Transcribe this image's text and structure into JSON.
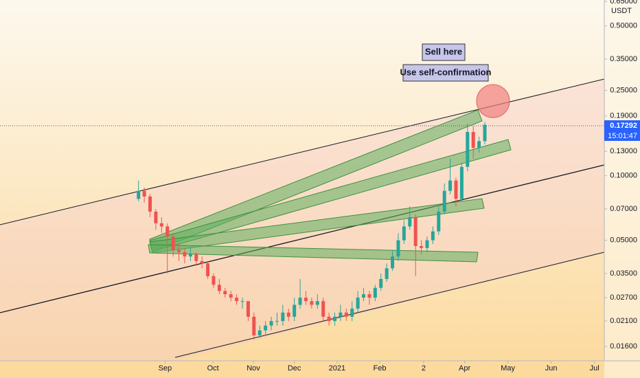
{
  "chart_data": {
    "type": "candlestick",
    "log_scale": true,
    "up_color": "#26a69a",
    "down_color": "#ef5350",
    "currency": "USDT",
    "countdown": "15:01:47",
    "annotations": [
      "Sell here",
      "Use self-confirmation"
    ],
    "candles": [
      [
        0.078,
        0.095,
        0.076,
        0.085
      ],
      [
        0.085,
        0.088,
        0.075,
        0.08
      ],
      [
        0.08,
        0.082,
        0.064,
        0.068
      ],
      [
        0.068,
        0.07,
        0.056,
        0.06
      ],
      [
        0.06,
        0.064,
        0.054,
        0.058
      ],
      [
        0.058,
        0.06,
        0.035,
        0.052
      ],
      [
        0.052,
        0.054,
        0.042,
        0.045
      ],
      [
        0.045,
        0.048,
        0.04,
        0.044
      ],
      [
        0.044,
        0.046,
        0.039,
        0.042
      ],
      [
        0.042,
        0.046,
        0.04,
        0.043
      ],
      [
        0.043,
        0.044,
        0.038,
        0.04
      ],
      [
        0.04,
        0.042,
        0.037,
        0.039
      ],
      [
        0.039,
        0.04,
        0.033,
        0.034
      ],
      [
        0.034,
        0.035,
        0.03,
        0.031
      ],
      [
        0.031,
        0.033,
        0.028,
        0.029
      ],
      [
        0.029,
        0.03,
        0.027,
        0.028
      ],
      [
        0.028,
        0.029,
        0.026,
        0.027
      ],
      [
        0.027,
        0.028,
        0.025,
        0.026
      ],
      [
        0.026,
        0.027,
        0.024,
        0.026
      ],
      [
        0.026,
        0.026,
        0.021,
        0.022
      ],
      [
        0.022,
        0.023,
        0.0172,
        0.018
      ],
      [
        0.018,
        0.02,
        0.0175,
        0.019
      ],
      [
        0.019,
        0.021,
        0.018,
        0.02
      ],
      [
        0.02,
        0.022,
        0.019,
        0.021
      ],
      [
        0.021,
        0.023,
        0.02,
        0.021
      ],
      [
        0.021,
        0.025,
        0.02,
        0.023
      ],
      [
        0.023,
        0.024,
        0.021,
        0.022
      ],
      [
        0.022,
        0.027,
        0.021,
        0.025
      ],
      [
        0.025,
        0.033,
        0.024,
        0.027
      ],
      [
        0.027,
        0.029,
        0.025,
        0.026
      ],
      [
        0.026,
        0.027,
        0.024,
        0.025
      ],
      [
        0.025,
        0.028,
        0.024,
        0.026
      ],
      [
        0.026,
        0.027,
        0.021,
        0.022
      ],
      [
        0.022,
        0.023,
        0.02,
        0.021
      ],
      [
        0.021,
        0.023,
        0.02,
        0.022
      ],
      [
        0.022,
        0.025,
        0.021,
        0.023
      ],
      [
        0.023,
        0.024,
        0.021,
        0.022
      ],
      [
        0.022,
        0.026,
        0.021,
        0.024
      ],
      [
        0.024,
        0.029,
        0.023,
        0.027
      ],
      [
        0.027,
        0.03,
        0.026,
        0.028
      ],
      [
        0.028,
        0.029,
        0.025,
        0.027
      ],
      [
        0.027,
        0.031,
        0.026,
        0.03
      ],
      [
        0.03,
        0.035,
        0.029,
        0.033
      ],
      [
        0.033,
        0.039,
        0.032,
        0.037
      ],
      [
        0.037,
        0.045,
        0.036,
        0.042
      ],
      [
        0.042,
        0.054,
        0.04,
        0.05
      ],
      [
        0.05,
        0.062,
        0.048,
        0.058
      ],
      [
        0.058,
        0.072,
        0.056,
        0.064
      ],
      [
        0.064,
        0.066,
        0.034,
        0.047
      ],
      [
        0.047,
        0.05,
        0.043,
        0.046
      ],
      [
        0.046,
        0.052,
        0.044,
        0.05
      ],
      [
        0.05,
        0.058,
        0.048,
        0.055
      ],
      [
        0.055,
        0.072,
        0.053,
        0.068
      ],
      [
        0.068,
        0.092,
        0.066,
        0.085
      ],
      [
        0.085,
        0.12,
        0.082,
        0.095
      ],
      [
        0.095,
        0.098,
        0.072,
        0.078
      ],
      [
        0.078,
        0.115,
        0.076,
        0.11
      ],
      [
        0.11,
        0.175,
        0.105,
        0.16
      ],
      [
        0.16,
        0.17,
        0.12,
        0.135
      ],
      [
        0.135,
        0.152,
        0.128,
        0.145
      ],
      [
        0.145,
        0.178,
        0.14,
        0.17292
      ]
    ],
    "xlim": [
      -24,
      80.7
    ],
    "xticks": [
      {
        "value": 4.6,
        "label": "Sep"
      },
      {
        "value": 12.9,
        "label": "Oct"
      },
      {
        "value": 19.9,
        "label": "Nov"
      },
      {
        "value": 27.0,
        "label": "Dec"
      },
      {
        "value": 34.4,
        "label": "2021"
      },
      {
        "value": 41.8,
        "label": "Feb"
      },
      {
        "value": 49.4,
        "label": "2"
      },
      {
        "value": 56.5,
        "label": "Apr"
      },
      {
        "value": 64.0,
        "label": "May"
      },
      {
        "value": 71.5,
        "label": "Jun"
      },
      {
        "value": 79.0,
        "label": "Jul"
      }
    ],
    "ylim": [
      0.0137,
      0.66
    ],
    "yticks": [
      {
        "value": 0.65,
        "label": "0.65000"
      },
      {
        "value": 0.5,
        "label": "0.50000"
      },
      {
        "value": 0.35,
        "label": "0.35000"
      },
      {
        "value": 0.25,
        "label": "0.25000"
      },
      {
        "value": 0.19,
        "label": "0.19000"
      },
      {
        "value": 0.13,
        "label": "0.13000"
      },
      {
        "value": 0.1,
        "label": "0.10000"
      },
      {
        "value": 0.07,
        "label": "0.07000"
      },
      {
        "value": 0.05,
        "label": "0.05000"
      },
      {
        "value": 0.035,
        "label": "0.03500"
      },
      {
        "value": 0.027,
        "label": "0.02700"
      },
      {
        "value": 0.021,
        "label": "0.02100"
      },
      {
        "value": 0.016,
        "label": "0.01600"
      }
    ]
  }
}
